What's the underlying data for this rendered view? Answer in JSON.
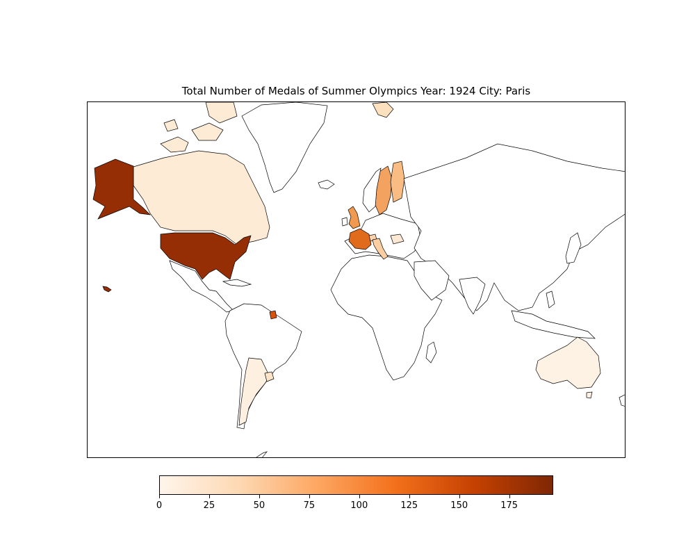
{
  "title": "Total Number of Medals of Summer Olympics  Year: 1924  City: Paris",
  "colorbar": {
    "min": 0,
    "max": 197,
    "ticks": [
      "0",
      "25",
      "50",
      "75",
      "100",
      "125",
      "150",
      "175"
    ],
    "tick_values": [
      0,
      25,
      50,
      75,
      100,
      125,
      150,
      175
    ],
    "gradient": [
      "#fff5eb",
      "#fdd9b4",
      "#fda762",
      "#f3701b",
      "#c54102",
      "#7f2704"
    ]
  },
  "chart_data": {
    "type": "choropleth",
    "title": "Total Number of Medals of Summer Olympics  Year: 1924  City: Paris",
    "colorbar_range": [
      0,
      197
    ],
    "regions": [
      {
        "name": "United States",
        "value": 197
      },
      {
        "name": "France",
        "value": 120
      },
      {
        "name": "United Kingdom",
        "value": 85
      },
      {
        "name": "Sweden",
        "value": 65
      },
      {
        "name": "Finland",
        "value": 40
      },
      {
        "name": "Italy",
        "value": 30
      },
      {
        "name": "Switzerland",
        "value": 30
      },
      {
        "name": "Canada",
        "value": 20
      },
      {
        "name": "Greenland",
        "value": 20
      },
      {
        "name": "Argentina",
        "value": 15
      },
      {
        "name": "Australia",
        "value": 10
      },
      {
        "name": "Uruguay",
        "value": 22
      },
      {
        "name": "Suriname",
        "value": 110
      }
    ]
  }
}
